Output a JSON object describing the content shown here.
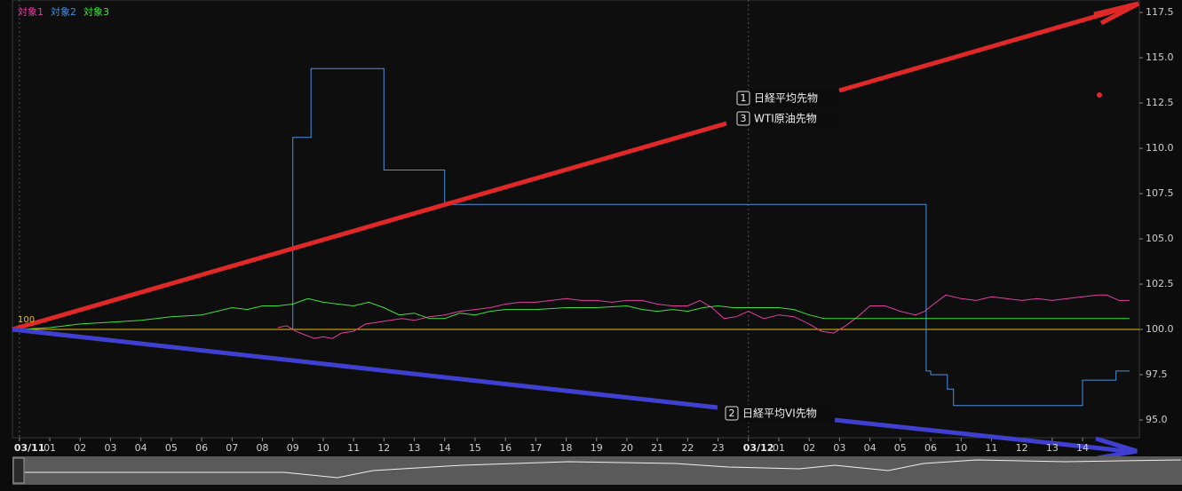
{
  "chart_data": {
    "type": "line",
    "series": [
      {
        "name": "対象1",
        "color": "#e040a0",
        "x": [
          8.5,
          8.8,
          9.1,
          9.4,
          9.7,
          10.0,
          10.3,
          10.6,
          11.0,
          11.4,
          11.8,
          12.2,
          12.6,
          13.0,
          13.5,
          14.0,
          14.5,
          15.0,
          15.5,
          16.0,
          16.5,
          17.0,
          17.5,
          18.0,
          18.5,
          19.0,
          19.5,
          20.0,
          20.5,
          21.0,
          21.5,
          22.0,
          22.4,
          22.8,
          23.2,
          23.6,
          24.0,
          24.5,
          25.0,
          25.5,
          26.0,
          26.4,
          26.8,
          27.2,
          27.6,
          28.0,
          28.5,
          29.0,
          29.5,
          29.8,
          30.1,
          30.5,
          31.0,
          31.5,
          32.0,
          32.5,
          33.0,
          33.5,
          34.0,
          34.5,
          35.0,
          35.5,
          35.8,
          36.2,
          36.55
        ],
        "values": [
          100.1,
          100.2,
          99.9,
          99.7,
          99.5,
          99.6,
          99.5,
          99.8,
          99.9,
          100.3,
          100.4,
          100.5,
          100.6,
          100.5,
          100.7,
          100.8,
          101.0,
          101.1,
          101.2,
          101.4,
          101.5,
          101.5,
          101.6,
          101.7,
          101.6,
          101.6,
          101.5,
          101.6,
          101.6,
          101.4,
          101.3,
          101.3,
          101.6,
          101.2,
          100.6,
          100.7,
          101.0,
          100.6,
          100.8,
          100.7,
          100.3,
          99.9,
          99.8,
          100.2,
          100.7,
          101.3,
          101.3,
          101.0,
          100.8,
          101.0,
          101.4,
          101.9,
          101.7,
          101.6,
          101.8,
          101.7,
          101.6,
          101.7,
          101.6,
          101.7,
          101.8,
          101.9,
          101.9,
          101.6,
          101.6
        ]
      },
      {
        "name": "対象2",
        "color": "#4a90e0",
        "x": [
          9,
          9,
          9.6,
          9.6,
          12,
          12,
          14,
          14,
          29.85,
          29.85,
          30.0,
          30.0,
          30.55,
          30.55,
          30.75,
          30.75,
          35,
          35,
          36.1,
          36.1,
          36.55
        ],
        "values": [
          100,
          110.6,
          110.6,
          114.4,
          114.4,
          108.8,
          108.8,
          106.9,
          106.9,
          97.7,
          97.7,
          97.5,
          97.5,
          96.7,
          96.7,
          95.8,
          95.8,
          97.2,
          97.2,
          97.7,
          97.7
        ]
      },
      {
        "name": "対象3",
        "color": "#40e040",
        "x": [
          0,
          1,
          2,
          3,
          4,
          5,
          6,
          6.5,
          7,
          7.5,
          8,
          8.5,
          9,
          9.5,
          10,
          10.5,
          11,
          11.5,
          12,
          12.5,
          13,
          13.5,
          14,
          14.5,
          15,
          15.5,
          16,
          17,
          18,
          19,
          20,
          20.5,
          21,
          21.5,
          22,
          22.5,
          23,
          23.5,
          24,
          24.5,
          25,
          25.5,
          26,
          26.5,
          27,
          36.55
        ],
        "values": [
          100,
          100.1,
          100.3,
          100.4,
          100.5,
          100.7,
          100.8,
          101.0,
          101.2,
          101.1,
          101.3,
          101.3,
          101.4,
          101.7,
          101.5,
          101.4,
          101.3,
          101.5,
          101.2,
          100.8,
          100.9,
          100.6,
          100.6,
          100.9,
          100.8,
          101.0,
          101.1,
          101.1,
          101.2,
          101.2,
          101.3,
          101.1,
          101.0,
          101.1,
          101.0,
          101.2,
          101.3,
          101.2,
          101.2,
          101.2,
          101.2,
          101.1,
          100.8,
          100.6,
          100.6,
          100.6
        ]
      }
    ],
    "baseline": 100,
    "xlim": [
      -0.23,
      36.87
    ],
    "xticks": [
      {
        "value": 0,
        "label": "03/11"
      },
      {
        "value": 1,
        "label": "01"
      },
      {
        "value": 2,
        "label": "02"
      },
      {
        "value": 3,
        "label": "03"
      },
      {
        "value": 4,
        "label": "04"
      },
      {
        "value": 5,
        "label": "05"
      },
      {
        "value": 6,
        "label": "06"
      },
      {
        "value": 7,
        "label": "07"
      },
      {
        "value": 8,
        "label": "08"
      },
      {
        "value": 9,
        "label": "09"
      },
      {
        "value": 10,
        "label": "10"
      },
      {
        "value": 11,
        "label": "11"
      },
      {
        "value": 12,
        "label": "12"
      },
      {
        "value": 13,
        "label": "13"
      },
      {
        "value": 14,
        "label": "14"
      },
      {
        "value": 15,
        "label": "15"
      },
      {
        "value": 16,
        "label": "16"
      },
      {
        "value": 17,
        "label": "17"
      },
      {
        "value": 18,
        "label": "18"
      },
      {
        "value": 19,
        "label": "19"
      },
      {
        "value": 20,
        "label": "20"
      },
      {
        "value": 21,
        "label": "21"
      },
      {
        "value": 22,
        "label": "22"
      },
      {
        "value": 23,
        "label": "23"
      },
      {
        "value": 24,
        "label": "03/12"
      },
      {
        "value": 25,
        "label": "01"
      },
      {
        "value": 26,
        "label": "02"
      },
      {
        "value": 27,
        "label": "03"
      },
      {
        "value": 28,
        "label": "04"
      },
      {
        "value": 29,
        "label": "05"
      },
      {
        "value": 30,
        "label": "06"
      },
      {
        "value": 31,
        "label": "10"
      },
      {
        "value": 32,
        "label": "11"
      },
      {
        "value": 33,
        "label": "12"
      },
      {
        "value": 34,
        "label": "13"
      },
      {
        "value": 35,
        "label": "14"
      }
    ],
    "ylim": [
      94.02,
      118.19
    ],
    "yticks": [
      {
        "value": 95,
        "label": "95.0"
      },
      {
        "value": 97.5,
        "label": "97.5"
      },
      {
        "value": 100,
        "label": "100.0"
      },
      {
        "value": 102.5,
        "label": "102.5"
      },
      {
        "value": 105,
        "label": "105.0"
      },
      {
        "value": 107.5,
        "label": "107.5"
      },
      {
        "value": 110,
        "label": "110.0"
      },
      {
        "value": 112.5,
        "label": "112.5"
      },
      {
        "value": 115,
        "label": "115.0"
      },
      {
        "value": 117.5,
        "label": "117.5"
      }
    ],
    "annotations": [
      {
        "marker": "1",
        "text": "日経平均先物"
      },
      {
        "marker": "3",
        "text": "WTI原油先物"
      },
      {
        "marker": "2",
        "text": "日経平均VI先物"
      }
    ]
  }
}
